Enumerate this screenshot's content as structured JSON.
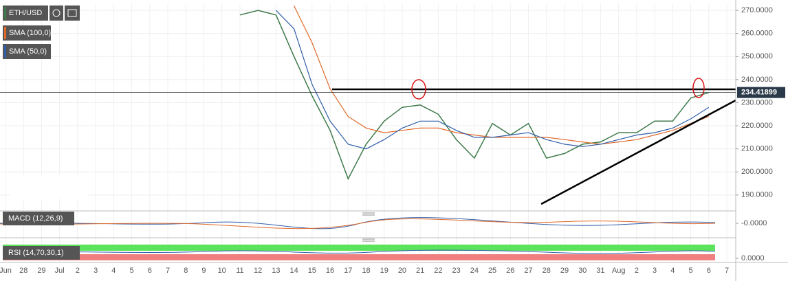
{
  "chart_data": {
    "type": "line",
    "grid": true,
    "categories": [
      "Jun",
      "28",
      "29",
      "Jul",
      "2",
      "3",
      "4",
      "5",
      "6",
      "7",
      "8",
      "9",
      "10",
      "11",
      "12",
      "13",
      "14",
      "15",
      "16",
      "17",
      "18",
      "19",
      "20",
      "21",
      "22",
      "23",
      "24",
      "25",
      "26",
      "27",
      "28",
      "29",
      "30",
      "31",
      "Aug",
      "2",
      "3",
      "4",
      "5",
      "6",
      "7"
    ],
    "series": [
      {
        "name": "ETH/USD",
        "color": "#3d7a4a",
        "values": [
          null,
          null,
          null,
          null,
          null,
          null,
          null,
          null,
          null,
          null,
          null,
          null,
          null,
          268,
          270,
          268,
          250,
          233,
          218,
          197,
          212,
          222,
          228,
          229,
          225,
          214,
          206,
          221,
          216,
          221,
          206,
          208,
          212,
          213,
          217,
          217,
          222,
          222,
          232,
          234.41899,
          null
        ]
      },
      {
        "name": "SMA (100,0)",
        "color": "#e0692a",
        "values": [
          null,
          null,
          null,
          null,
          null,
          null,
          null,
          null,
          null,
          null,
          null,
          null,
          null,
          null,
          null,
          null,
          272,
          256,
          236,
          224,
          219,
          217,
          218,
          219,
          219,
          217,
          216,
          215,
          215,
          215,
          215,
          214,
          213,
          212,
          213,
          214,
          216,
          218,
          221,
          224,
          null
        ]
      },
      {
        "name": "SMA (50,0)",
        "color": "#2f5ea8",
        "values": [
          null,
          null,
          null,
          null,
          null,
          null,
          null,
          null,
          null,
          null,
          null,
          null,
          null,
          null,
          null,
          270,
          262,
          238,
          222,
          212,
          210,
          214,
          219,
          222,
          222,
          218,
          215,
          215,
          216,
          217,
          214,
          212,
          211,
          212,
          214,
          216,
          217,
          219,
          223,
          228,
          null
        ]
      }
    ],
    "ylim": [
      184,
      273
    ],
    "yticks": [
      {
        "value": 190,
        "label": "190.0000"
      },
      {
        "value": 200,
        "label": "200.0000"
      },
      {
        "value": 210,
        "label": "210.0000"
      },
      {
        "value": 220,
        "label": "220.0000"
      },
      {
        "value": 230,
        "label": "230.0000"
      },
      {
        "value": 240,
        "label": "240.0000"
      },
      {
        "value": 250,
        "label": "250.0000"
      },
      {
        "value": 260,
        "label": "260.0000"
      },
      {
        "value": 270,
        "label": "270.0000"
      }
    ],
    "last_price": 234.41899,
    "indicators": [
      {
        "name": "MACD (12,26,9)",
        "yticks": [
          {
            "value": 0,
            "label": "-0.0000"
          }
        ]
      },
      {
        "name": "RSI (14,70,30,1)",
        "yticks": [
          {
            "value": 0,
            "label": "0.0000"
          }
        ]
      }
    ]
  }
}
